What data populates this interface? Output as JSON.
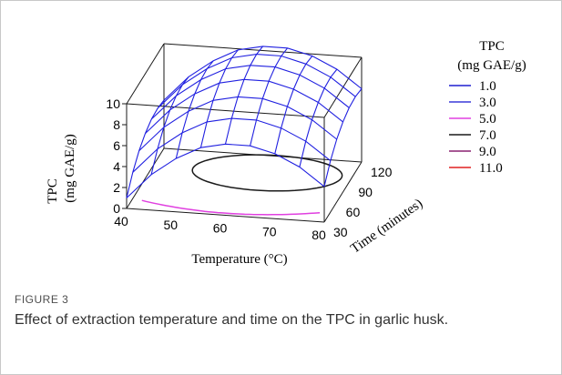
{
  "figure": {
    "label": "FIGURE 3",
    "caption": "Effect of extraction temperature and time on the TPC in garlic husk."
  },
  "chart_data": {
    "type": "surface3d",
    "zlabel_line1": "TPC",
    "zlabel_line2": "(mg GAE/g)",
    "xlabel": "Temperature (°C)",
    "ylabel": "Time (minutes)",
    "x_ticks": [
      "40",
      "50",
      "60",
      "70",
      "80"
    ],
    "y_ticks": [
      "30",
      "60",
      "90",
      "120"
    ],
    "z_ticks": [
      "0",
      "2",
      "4",
      "6",
      "8",
      "10"
    ],
    "xlim": [
      40,
      80
    ],
    "ylim": [
      30,
      120
    ],
    "zlim": [
      0,
      10
    ],
    "legend": {
      "title_line1": "TPC",
      "title_line2": "(mg GAE/g)",
      "position": "right",
      "entries": [
        {
          "label": "1.0",
          "color": "#1f1fd0"
        },
        {
          "label": "3.0",
          "color": "#3a3ad8"
        },
        {
          "label": "5.0",
          "color": "#e040e0"
        },
        {
          "label": "7.0",
          "color": "#1a1a1a"
        },
        {
          "label": "9.0",
          "color": "#8a2070"
        },
        {
          "label": "11.0",
          "color": "#e02020"
        }
      ]
    },
    "contours_on_floor": [
      {
        "level": "5.0",
        "color": "#e040e0"
      },
      {
        "level": "7.0",
        "color": "#1a1a1a"
      }
    ],
    "surface_color": "#2020e0",
    "temperature_grid": [
      40,
      45,
      50,
      55,
      60,
      65,
      70,
      75,
      80
    ],
    "time_grid": [
      30,
      45,
      60,
      75,
      90,
      105,
      120
    ],
    "tpc_surface": [
      [
        1.0,
        2.5,
        3.6,
        4.3,
        4.7,
        4.8,
        4.6
      ],
      [
        3.4,
        4.9,
        6.0,
        6.7,
        7.1,
        7.2,
        7.0
      ],
      [
        5.1,
        6.6,
        7.7,
        8.4,
        8.8,
        8.9,
        8.7
      ],
      [
        6.3,
        7.8,
        8.9,
        9.6,
        10.0,
        10.1,
        9.9
      ],
      [
        6.8,
        8.3,
        9.4,
        10.1,
        10.5,
        10.6,
        10.4
      ],
      [
        6.8,
        8.3,
        9.4,
        10.1,
        10.5,
        10.6,
        10.4
      ],
      [
        6.2,
        7.7,
        8.8,
        9.5,
        9.9,
        10.0,
        9.8
      ],
      [
        5.1,
        6.6,
        7.7,
        8.4,
        8.8,
        8.9,
        8.7
      ],
      [
        3.4,
        4.9,
        6.0,
        6.7,
        7.1,
        7.2,
        7.0
      ]
    ],
    "grid": true
  }
}
